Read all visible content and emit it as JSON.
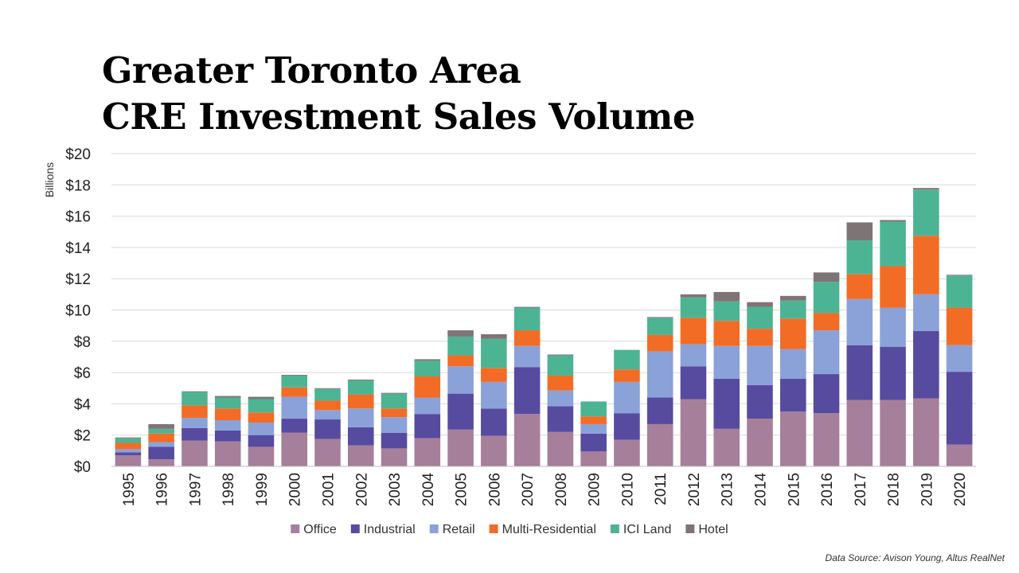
{
  "header": {
    "title_line1": "Greater Toronto Area",
    "title_line2": "CRE Investment Sales Volume"
  },
  "footer": {
    "source": "Data Source: Avison Young, Altus RealNet"
  },
  "chart_data": {
    "type": "bar",
    "stacked": true,
    "title": "Greater Toronto Area CRE Investment Sales Volume",
    "xlabel": "",
    "ylabel": "Billions",
    "ylim": [
      0,
      20
    ],
    "yticks": [
      "$0",
      "$2",
      "$4",
      "$6",
      "$8",
      "$10",
      "$12",
      "$14",
      "$16",
      "$18",
      "$20"
    ],
    "grid": true,
    "legend_position": "bottom",
    "categories": [
      "1995",
      "1996",
      "1997",
      "1998",
      "1999",
      "2000",
      "2001",
      "2002",
      "2003",
      "2004",
      "2005",
      "2006",
      "2007",
      "2008",
      "2009",
      "2010",
      "2011",
      "2012",
      "2013",
      "2014",
      "2015",
      "2016",
      "2017",
      "2018",
      "2019",
      "2020"
    ],
    "series": [
      {
        "name": "Office",
        "color": "#a67f9b",
        "values": [
          0.7,
          0.45,
          1.65,
          1.6,
          1.25,
          2.15,
          1.75,
          1.35,
          1.15,
          1.8,
          2.35,
          1.95,
          3.35,
          2.2,
          0.95,
          1.7,
          2.7,
          4.3,
          2.4,
          3.05,
          3.5,
          3.4,
          4.25,
          4.25,
          4.35,
          1.4
        ]
      },
      {
        "name": "Industrial",
        "color": "#574ba0",
        "values": [
          0.2,
          0.8,
          0.8,
          0.7,
          0.75,
          0.9,
          1.25,
          1.15,
          1.0,
          1.55,
          2.3,
          1.75,
          3.0,
          1.65,
          1.15,
          1.7,
          1.7,
          2.1,
          3.2,
          2.15,
          2.1,
          2.5,
          3.5,
          3.4,
          4.3,
          4.65
        ]
      },
      {
        "name": "Retail",
        "color": "#8aa2d8",
        "values": [
          0.2,
          0.3,
          0.65,
          0.65,
          0.8,
          1.4,
          0.6,
          1.2,
          1.0,
          1.05,
          1.75,
          1.7,
          1.35,
          1.0,
          0.6,
          2.0,
          2.95,
          1.4,
          2.1,
          2.5,
          1.9,
          2.8,
          2.95,
          2.5,
          2.35,
          1.7
        ]
      },
      {
        "name": "Multi-Residential",
        "color": "#f26c26",
        "values": [
          0.4,
          0.55,
          0.8,
          0.75,
          0.65,
          0.6,
          0.6,
          0.9,
          0.55,
          1.35,
          0.7,
          0.9,
          1.0,
          0.95,
          0.5,
          0.8,
          1.05,
          1.7,
          1.6,
          1.1,
          1.95,
          1.1,
          1.6,
          2.65,
          3.75,
          2.4
        ]
      },
      {
        "name": "ICI Land",
        "color": "#4db493",
        "values": [
          0.3,
          0.3,
          0.85,
          0.7,
          0.85,
          0.75,
          0.75,
          0.9,
          0.95,
          1.0,
          1.2,
          1.85,
          1.45,
          1.3,
          0.95,
          1.25,
          1.1,
          1.3,
          1.25,
          1.4,
          1.15,
          2.0,
          2.15,
          2.85,
          2.95,
          2.05
        ]
      },
      {
        "name": "Hotel",
        "color": "#7f7475",
        "values": [
          0.05,
          0.3,
          0.05,
          0.1,
          0.15,
          0.05,
          0.05,
          0.05,
          0.05,
          0.1,
          0.4,
          0.3,
          0.05,
          0.05,
          0.0,
          0.0,
          0.05,
          0.2,
          0.6,
          0.3,
          0.3,
          0.6,
          1.15,
          0.1,
          0.1,
          0.05
        ]
      }
    ]
  }
}
